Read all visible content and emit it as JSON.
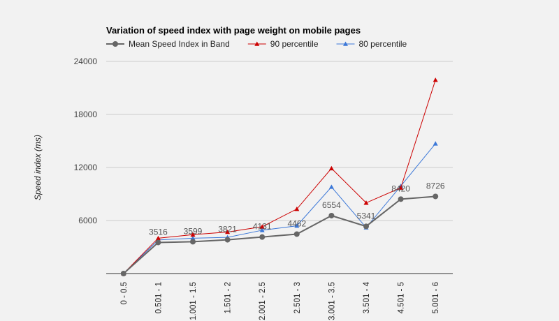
{
  "chart_data": {
    "type": "line",
    "title": "Variation of speed index with page weight on mobile pages",
    "xlabel": "",
    "ylabel": "Speed index (ms)",
    "ylim": [
      0,
      24000
    ],
    "yticks": [
      6000,
      12000,
      18000,
      24000
    ],
    "ytick_labels": [
      "6000",
      "12000",
      "18000",
      "24000"
    ],
    "grid": true,
    "legend_position": "top",
    "categories": [
      "0 - 0.5",
      "0.501 - 1",
      "1.001 - 1.5",
      "1.501 - 2",
      "2.001 - 2.5",
      "2.501 - 3",
      "3.001 - 3.5",
      "3.501 - 4",
      "4.501 - 5",
      "5.001 - 6"
    ],
    "series": [
      {
        "name": "Mean Speed Index in Band",
        "color": "#666666",
        "marker": "circle",
        "values": [
          0,
          3516,
          3599,
          3821,
          4131,
          4462,
          6554,
          5341,
          8420,
          8726
        ],
        "data_labels": [
          "",
          "3516",
          "3599",
          "3821",
          "4131",
          "4462",
          "6554",
          "5341",
          "8420",
          "8726"
        ]
      },
      {
        "name": "90 percentile",
        "color": "#cc0000",
        "marker": "triangle",
        "values": [
          0,
          4000,
          4400,
          4700,
          5300,
          7300,
          11900,
          8000,
          9700,
          21900
        ]
      },
      {
        "name": "80 percentile",
        "color": "#3c78d8",
        "marker": "triangle",
        "values": [
          0,
          3800,
          4000,
          4100,
          4900,
          5400,
          9800,
          5200,
          9900,
          14700
        ]
      }
    ]
  }
}
